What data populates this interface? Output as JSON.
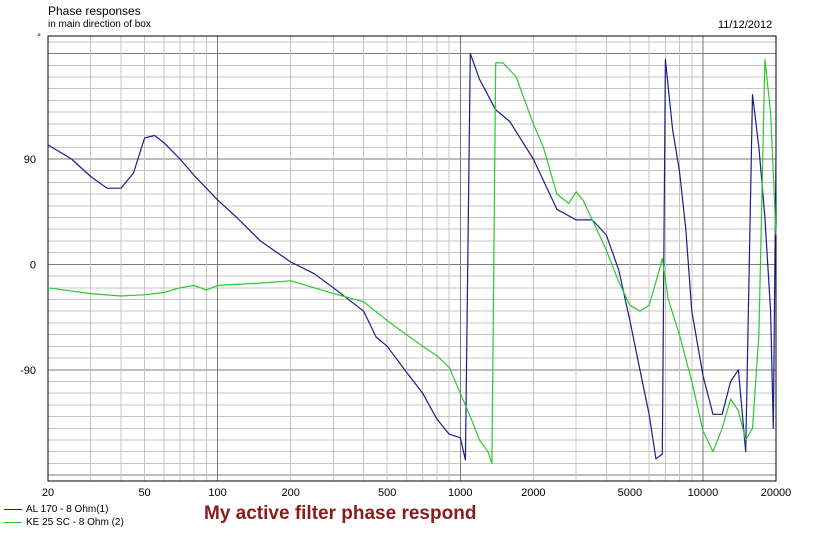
{
  "header": {
    "title": "Phase responses",
    "subtitle": "in main direction of box",
    "date": "11/12/2012"
  },
  "caption": "My active filter phase respond",
  "legend": [
    {
      "label": "AL 170 - 8 Ohm(1)",
      "color": "#1c1c8c"
    },
    {
      "label": "KE 25 SC - 8 Ohm   (2)",
      "color": "#2ec82e"
    }
  ],
  "chart_data": {
    "type": "line",
    "title": "Phase responses",
    "subtitle": "in main direction of box",
    "xscale": "log",
    "xlim": [
      20,
      20000
    ],
    "ylim": [
      -185,
      195
    ],
    "y_unit": "°",
    "xticks": [
      20,
      50,
      100,
      200,
      500,
      1000,
      2000,
      5000,
      10000,
      20000
    ],
    "yticks": [
      90,
      0,
      -90
    ],
    "grid": true,
    "legend_position": "bottom-left",
    "series": [
      {
        "name": "AL 170 - 8 Ohm(1)",
        "color": "#1c1c8c",
        "points": [
          [
            20,
            102
          ],
          [
            25,
            90
          ],
          [
            30,
            75
          ],
          [
            35,
            65
          ],
          [
            40,
            65
          ],
          [
            45,
            78
          ],
          [
            50,
            108
          ],
          [
            55,
            110
          ],
          [
            60,
            104
          ],
          [
            70,
            90
          ],
          [
            80,
            76
          ],
          [
            100,
            55
          ],
          [
            120,
            40
          ],
          [
            150,
            20
          ],
          [
            200,
            2
          ],
          [
            250,
            -8
          ],
          [
            300,
            -20
          ],
          [
            400,
            -40
          ],
          [
            450,
            -62
          ],
          [
            500,
            -70
          ],
          [
            600,
            -92
          ],
          [
            700,
            -110
          ],
          [
            800,
            -132
          ],
          [
            900,
            -145
          ],
          [
            1000,
            -148
          ],
          [
            1050,
            -167
          ],
          [
            1100,
            180
          ],
          [
            1200,
            158
          ],
          [
            1400,
            132
          ],
          [
            1600,
            122
          ],
          [
            2000,
            90
          ],
          [
            2500,
            47
          ],
          [
            3000,
            38
          ],
          [
            3500,
            38
          ],
          [
            4000,
            25
          ],
          [
            4500,
            -5
          ],
          [
            5000,
            -48
          ],
          [
            5500,
            -90
          ],
          [
            6000,
            -128
          ],
          [
            6400,
            -166
          ],
          [
            6800,
            -162
          ],
          [
            7000,
            175
          ],
          [
            7500,
            115
          ],
          [
            8000,
            80
          ],
          [
            8500,
            30
          ],
          [
            9000,
            -40
          ],
          [
            10000,
            -95
          ],
          [
            11000,
            -128
          ],
          [
            12000,
            -128
          ],
          [
            13000,
            -100
          ],
          [
            14000,
            -90
          ],
          [
            15000,
            -160
          ],
          [
            16000,
            145
          ],
          [
            17000,
            100
          ],
          [
            18000,
            40
          ],
          [
            19000,
            -40
          ],
          [
            19500,
            -140
          ],
          [
            20000,
            95
          ]
        ]
      },
      {
        "name": "KE 25 SC - 8 Ohm   (2)",
        "color": "#2ec82e",
        "points": [
          [
            20,
            -20
          ],
          [
            30,
            -25
          ],
          [
            40,
            -27
          ],
          [
            50,
            -26
          ],
          [
            60,
            -24
          ],
          [
            70,
            -20
          ],
          [
            80,
            -18
          ],
          [
            90,
            -22
          ],
          [
            100,
            -18
          ],
          [
            150,
            -16
          ],
          [
            200,
            -14
          ],
          [
            250,
            -20
          ],
          [
            300,
            -25
          ],
          [
            400,
            -32
          ],
          [
            500,
            -48
          ],
          [
            600,
            -60
          ],
          [
            700,
            -70
          ],
          [
            800,
            -78
          ],
          [
            900,
            -88
          ],
          [
            1000,
            -110
          ],
          [
            1100,
            -130
          ],
          [
            1200,
            -150
          ],
          [
            1300,
            -160
          ],
          [
            1350,
            -170
          ],
          [
            1400,
            172
          ],
          [
            1500,
            172
          ],
          [
            1700,
            160
          ],
          [
            2000,
            120
          ],
          [
            2200,
            100
          ],
          [
            2500,
            60
          ],
          [
            2800,
            52
          ],
          [
            3000,
            62
          ],
          [
            3200,
            55
          ],
          [
            3500,
            38
          ],
          [
            4000,
            12
          ],
          [
            4500,
            -15
          ],
          [
            5000,
            -35
          ],
          [
            5500,
            -40
          ],
          [
            6000,
            -35
          ],
          [
            6500,
            -10
          ],
          [
            6800,
            5
          ],
          [
            7200,
            -30
          ],
          [
            8000,
            -60
          ],
          [
            9000,
            -100
          ],
          [
            10000,
            -142
          ],
          [
            11000,
            -160
          ],
          [
            12000,
            -140
          ],
          [
            13000,
            -115
          ],
          [
            14000,
            -125
          ],
          [
            15000,
            -150
          ],
          [
            16000,
            -140
          ],
          [
            17000,
            -60
          ],
          [
            18000,
            175
          ],
          [
            19000,
            130
          ],
          [
            20000,
            25
          ]
        ]
      }
    ]
  }
}
